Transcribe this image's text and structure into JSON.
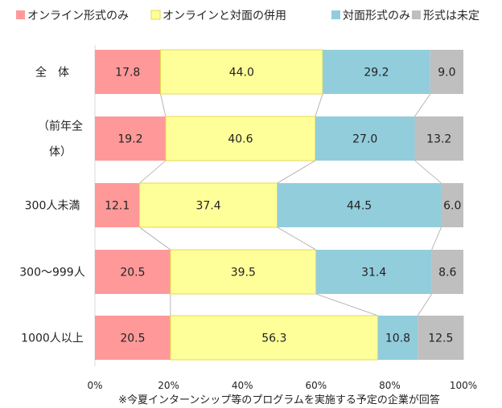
{
  "chart_data": {
    "type": "bar",
    "orientation": "horizontal",
    "stacked": true,
    "categories": [
      "全　体",
      "（前年全体）",
      "300人未満",
      "300～999人",
      "1000人以上"
    ],
    "category_lines": [
      [
        "全　体"
      ],
      [
        "（前年全",
        "体）"
      ],
      [
        "300人未満"
      ],
      [
        "300～999人"
      ],
      [
        "1000人以上"
      ]
    ],
    "series": [
      {
        "name": "オンライン形式のみ",
        "color": "#FF9999",
        "values": [
          17.8,
          19.2,
          12.1,
          20.5,
          20.5
        ]
      },
      {
        "name": "オンラインと対面の併用",
        "color": "#FFFF99",
        "values": [
          44.0,
          40.6,
          37.4,
          39.5,
          56.3
        ]
      },
      {
        "name": "対面形式のみ",
        "color": "#92CDDC",
        "values": [
          29.2,
          27.0,
          44.5,
          31.4,
          10.8
        ]
      },
      {
        "name": "形式は未定",
        "color": "#BFBFBF",
        "values": [
          9.0,
          13.2,
          6.0,
          8.6,
          12.5
        ]
      }
    ],
    "xlim": [
      0,
      100
    ],
    "xticks": [
      "0%",
      "20%",
      "40%",
      "60%",
      "80%",
      "100%"
    ],
    "legend_position": "top",
    "series_lines": true,
    "note": "※今夏インターンシップ等のプログラムを実施する予定の企業が回答"
  }
}
